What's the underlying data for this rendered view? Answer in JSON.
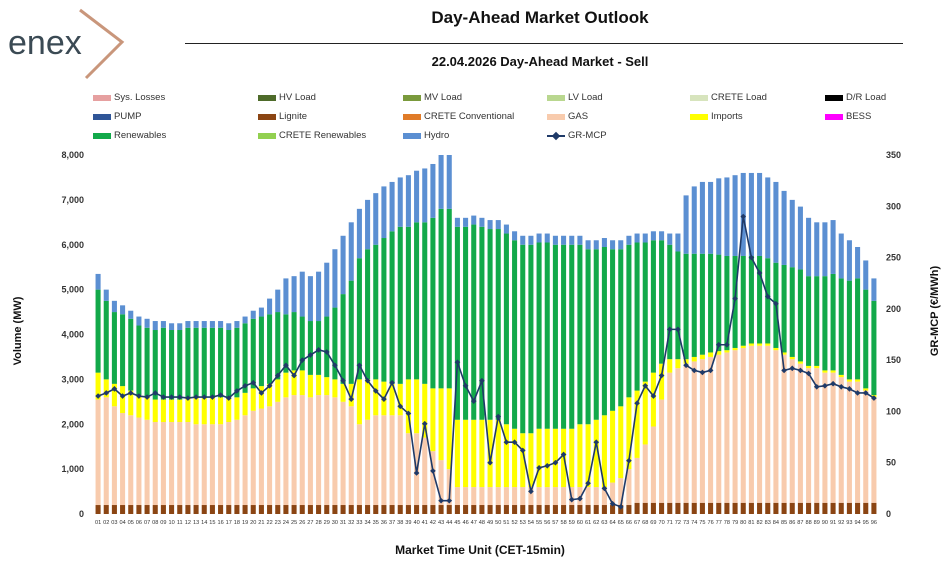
{
  "header": {
    "logo_text": "enex",
    "title": "Day-Ahead Market Outlook",
    "subtitle": "22.04.2026  Day-Ahead Market - Sell"
  },
  "chart_data": {
    "type": "bar",
    "stacked": true,
    "xlabel": "Market Time Unit (CET-15min)",
    "ylabel": "Volume (MW)",
    "y2label": "GR-MCP (€/MWh)",
    "ylim": [
      0,
      8000
    ],
    "y2lim": [
      0,
      350
    ],
    "yticks": [
      "0",
      "1,000",
      "2,000",
      "3,000",
      "4,000",
      "5,000",
      "6,000",
      "7,000",
      "8,000"
    ],
    "y2ticks": [
      "0",
      "50",
      "100",
      "150",
      "200",
      "250",
      "300",
      "350"
    ],
    "categories": [
      "01",
      "02",
      "03",
      "04",
      "05",
      "06",
      "07",
      "08",
      "09",
      "10",
      "11",
      "12",
      "13",
      "14",
      "15",
      "16",
      "17",
      "18",
      "19",
      "20",
      "21",
      "22",
      "23",
      "24",
      "25",
      "26",
      "27",
      "28",
      "29",
      "30",
      "31",
      "32",
      "33",
      "34",
      "35",
      "36",
      "37",
      "38",
      "39",
      "40",
      "41",
      "42",
      "43",
      "44",
      "45",
      "46",
      "47",
      "48",
      "49",
      "50",
      "51",
      "52",
      "53",
      "54",
      "55",
      "56",
      "57",
      "58",
      "59",
      "60",
      "61",
      "62",
      "63",
      "64",
      "65",
      "66",
      "67",
      "68",
      "69",
      "70",
      "71",
      "72",
      "73",
      "74",
      "75",
      "76",
      "77",
      "78",
      "79",
      "80",
      "81",
      "82",
      "83",
      "84",
      "85",
      "86",
      "87",
      "88",
      "89",
      "90",
      "91",
      "92",
      "93",
      "94",
      "95",
      "96"
    ],
    "legend": [
      {
        "name": "Sys. Losses",
        "color": "#e6a0a0",
        "type": "bar"
      },
      {
        "name": "HV Load",
        "color": "#4e6b2a",
        "type": "bar"
      },
      {
        "name": "MV Load",
        "color": "#7a9a3c",
        "type": "bar"
      },
      {
        "name": "LV Load",
        "color": "#b9d78f",
        "type": "bar"
      },
      {
        "name": "CRETE Load",
        "color": "#d7e4bd",
        "type": "bar"
      },
      {
        "name": "D/R Load",
        "color": "#000000",
        "type": "bar"
      },
      {
        "name": "PUMP",
        "color": "#2f5597",
        "type": "bar"
      },
      {
        "name": "Lignite",
        "color": "#8b4513",
        "type": "bar"
      },
      {
        "name": "CRETE Conventional",
        "color": "#e07b28",
        "type": "bar"
      },
      {
        "name": "GAS",
        "color": "#f8cbad",
        "type": "bar"
      },
      {
        "name": "Imports",
        "color": "#ffff00",
        "type": "bar"
      },
      {
        "name": "BESS",
        "color": "#ff00ff",
        "type": "bar"
      },
      {
        "name": "Renewables",
        "color": "#12a94a",
        "type": "bar"
      },
      {
        "name": "CRETE Renewables",
        "color": "#92d050",
        "type": "bar"
      },
      {
        "name": "Hydro",
        "color": "#5b8fd2",
        "type": "bar"
      },
      {
        "name": "GR-MCP",
        "color": "#1f3a68",
        "type": "line"
      }
    ],
    "series": [
      {
        "name": "Lignite",
        "values": [
          200,
          200,
          200,
          200,
          200,
          200,
          200,
          200,
          200,
          200,
          200,
          200,
          200,
          200,
          200,
          200,
          200,
          200,
          200,
          200,
          200,
          200,
          200,
          200,
          200,
          200,
          200,
          200,
          200,
          200,
          200,
          200,
          200,
          200,
          200,
          200,
          200,
          200,
          200,
          200,
          200,
          200,
          200,
          200,
          200,
          200,
          200,
          200,
          200,
          200,
          200,
          200,
          200,
          200,
          200,
          200,
          200,
          200,
          200,
          200,
          200,
          200,
          200,
          200,
          200,
          200,
          250,
          250,
          250,
          250,
          250,
          250,
          250,
          250,
          250,
          250,
          250,
          250,
          250,
          250,
          250,
          250,
          250,
          250,
          250,
          250,
          250,
          250,
          250,
          250,
          250,
          250,
          250,
          250,
          250,
          250
        ]
      },
      {
        "name": "GAS",
        "values": [
          2350,
          2400,
          2200,
          2050,
          2000,
          1950,
          1900,
          1850,
          1850,
          1850,
          1850,
          1850,
          1800,
          1800,
          1800,
          1800,
          1850,
          1900,
          2000,
          2100,
          2150,
          2200,
          2300,
          2400,
          2450,
          2450,
          2400,
          2450,
          2450,
          2400,
          2300,
          2200,
          1800,
          1900,
          2000,
          2000,
          2000,
          2000,
          1600,
          1600,
          1500,
          1200,
          1000,
          800,
          400,
          400,
          400,
          400,
          400,
          400,
          400,
          400,
          400,
          400,
          400,
          400,
          400,
          400,
          400,
          400,
          400,
          400,
          400,
          500,
          600,
          800,
          1000,
          1300,
          1700,
          2300,
          2900,
          3000,
          3100,
          3150,
          3200,
          3250,
          3300,
          3350,
          3400,
          3450,
          3500,
          3500,
          3500,
          3400,
          3300,
          3200,
          3100,
          3000,
          3000,
          2900,
          2900,
          2800,
          2700,
          2700,
          2500,
          2350
        ]
      },
      {
        "name": "Imports",
        "values": [
          600,
          400,
          500,
          600,
          550,
          500,
          500,
          500,
          500,
          500,
          500,
          550,
          600,
          600,
          600,
          600,
          550,
          500,
          500,
          500,
          500,
          500,
          500,
          550,
          550,
          550,
          500,
          450,
          400,
          400,
          400,
          500,
          1000,
          900,
          800,
          750,
          700,
          700,
          1200,
          1200,
          1200,
          1400,
          1600,
          1800,
          1500,
          1500,
          1500,
          1500,
          1500,
          1500,
          1400,
          1300,
          1200,
          1200,
          1300,
          1300,
          1300,
          1300,
          1300,
          1400,
          1400,
          1500,
          1600,
          1600,
          1600,
          1600,
          1500,
          1400,
          1200,
          800,
          300,
          200,
          100,
          100,
          100,
          100,
          80,
          50,
          50,
          50,
          50,
          50,
          50,
          50,
          50,
          50,
          50,
          50,
          50,
          50,
          50,
          50,
          50,
          50,
          50,
          50
        ]
      },
      {
        "name": "Renewables",
        "values": [
          1850,
          1750,
          1600,
          1600,
          1600,
          1550,
          1550,
          1550,
          1600,
          1550,
          1550,
          1550,
          1550,
          1550,
          1550,
          1550,
          1500,
          1550,
          1550,
          1550,
          1550,
          1550,
          1500,
          1300,
          1300,
          1200,
          1200,
          1200,
          1350,
          1600,
          2000,
          2300,
          2700,
          2900,
          3000,
          3200,
          3400,
          3500,
          3400,
          3500,
          3600,
          3800,
          4000,
          4000,
          4300,
          4300,
          4350,
          4300,
          4250,
          4250,
          4250,
          4200,
          4200,
          4200,
          4150,
          4150,
          4100,
          4100,
          4100,
          4000,
          3900,
          3800,
          3750,
          3600,
          3500,
          3400,
          3300,
          3100,
          2950,
          2750,
          2550,
          2400,
          2350,
          2300,
          2250,
          2200,
          2150,
          2100,
          2050,
          2000,
          1950,
          1950,
          1900,
          1900,
          1950,
          2000,
          2050,
          2000,
          2000,
          2100,
          2150,
          2150,
          2200,
          2250,
          2200,
          2100
        ]
      },
      {
        "name": "Hydro",
        "values": [
          350,
          250,
          250,
          200,
          180,
          200,
          200,
          200,
          150,
          150,
          150,
          150,
          150,
          150,
          150,
          150,
          150,
          150,
          150,
          180,
          200,
          350,
          500,
          800,
          800,
          1000,
          1000,
          1100,
          1200,
          1300,
          1300,
          1300,
          1100,
          1100,
          1150,
          1150,
          1100,
          1100,
          1150,
          1150,
          1200,
          1200,
          1200,
          1200,
          200,
          200,
          200,
          200,
          200,
          200,
          200,
          200,
          200,
          200,
          200,
          200,
          200,
          200,
          200,
          200,
          200,
          200,
          200,
          200,
          200,
          200,
          200,
          200,
          200,
          200,
          250,
          400,
          1300,
          1500,
          1600,
          1600,
          1700,
          1750,
          1800,
          1850,
          1850,
          1850,
          1800,
          1800,
          1650,
          1500,
          1400,
          1300,
          1200,
          1200,
          1200,
          1000,
          900,
          700,
          650,
          500
        ]
      }
    ],
    "line": {
      "name": "GR-MCP",
      "axis": "y2",
      "values": [
        115,
        118,
        122,
        115,
        118,
        115,
        114,
        118,
        114,
        114,
        114,
        113,
        114,
        114,
        114,
        116,
        113,
        120,
        125,
        128,
        118,
        125,
        135,
        145,
        135,
        150,
        155,
        160,
        158,
        145,
        130,
        112,
        145,
        130,
        120,
        112,
        128,
        105,
        98,
        40,
        88,
        42,
        13,
        13,
        148,
        125,
        110,
        130,
        50,
        95,
        70,
        70,
        62,
        22,
        45,
        47,
        50,
        58,
        14,
        15,
        30,
        70,
        25,
        10,
        7,
        52,
        108,
        125,
        115,
        135,
        180,
        180,
        145,
        140,
        138,
        140,
        165,
        165,
        210,
        290,
        250,
        235,
        212,
        205,
        140,
        142,
        140,
        137,
        124,
        125,
        127,
        124,
        122,
        118,
        118,
        113
      ]
    }
  }
}
